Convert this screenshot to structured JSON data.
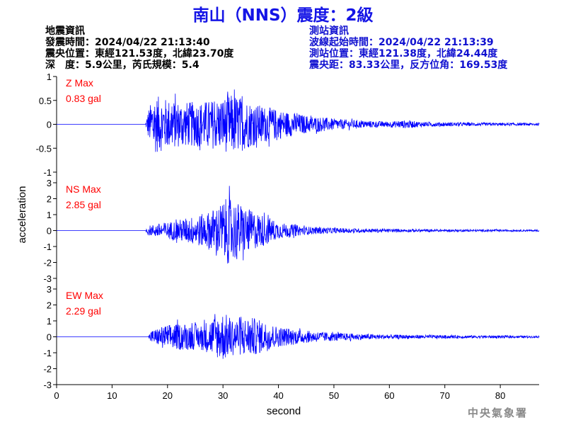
{
  "header": {
    "title": "南山（NNS）震度：2級",
    "quake_info": {
      "heading": "地震資訊",
      "origin_time": "發震時間：2024/04/22 21:13:40",
      "epicenter": "震央位置：東經121.53度，北緯23.70度",
      "depth_magnitude": "深　度：5.9公里，芮氏規模：5.4"
    },
    "station_info": {
      "heading": "測站資訊",
      "wave_start": "波線起始時間：2024/04/22 21:13:39",
      "station_location": "測站位置：東經121.38度，北緯24.44度",
      "distance_azimuth": "震央距：83.33公里，反方位角：169.53度"
    }
  },
  "footer": {
    "organization": "中央氣象署"
  },
  "colors": {
    "trace": "#0000ff",
    "max_label": "#ff0000",
    "title": "#1414e6",
    "station_info": "#1010d0"
  },
  "chart_data": {
    "type": "line",
    "xlabel": "second",
    "ylabel": "acceleration",
    "xlim": [
      0,
      87
    ],
    "x_ticks": [
      0,
      10,
      20,
      30,
      40,
      50,
      60,
      70,
      80
    ],
    "grid": false,
    "panels": [
      {
        "name": "Z",
        "max_label": "Z Max",
        "max_value": "0.83 gal",
        "ylim": [
          -1,
          1
        ],
        "y_ticks": [
          1,
          0.5,
          0,
          -0.5,
          -1
        ],
        "y_tick_labels": [
          "1",
          "0.5",
          "0",
          "-0.5",
          "-1"
        ],
        "envelope": [
          [
            0,
            0
          ],
          [
            16,
            0
          ],
          [
            16.5,
            0.35
          ],
          [
            17.5,
            0.72
          ],
          [
            20,
            0.62
          ],
          [
            23,
            0.55
          ],
          [
            26,
            0.56
          ],
          [
            29,
            0.62
          ],
          [
            32,
            0.75
          ],
          [
            34,
            0.62
          ],
          [
            36,
            0.5
          ],
          [
            40,
            0.36
          ],
          [
            45,
            0.22
          ],
          [
            50,
            0.14
          ],
          [
            55,
            0.09
          ],
          [
            60,
            0.07
          ],
          [
            63,
            0.1
          ],
          [
            66,
            0.06
          ],
          [
            75,
            0.04
          ],
          [
            87,
            0.03
          ]
        ]
      },
      {
        "name": "NS",
        "max_label": "NS Max",
        "max_value": "2.85 gal",
        "ylim": [
          -3,
          3
        ],
        "y_ticks": [
          3,
          2,
          1,
          0,
          -1,
          -2,
          -3
        ],
        "y_tick_labels": [
          "3",
          "2",
          "1",
          "0",
          "-1",
          "-2",
          "-3"
        ],
        "envelope": [
          [
            0,
            0
          ],
          [
            16,
            0
          ],
          [
            16.5,
            0.35
          ],
          [
            18,
            0.5
          ],
          [
            21,
            0.7
          ],
          [
            24,
            1.0
          ],
          [
            27,
            1.3
          ],
          [
            29,
            1.8
          ],
          [
            31,
            2.5
          ],
          [
            33,
            2.0
          ],
          [
            35,
            1.5
          ],
          [
            38,
            1.05
          ],
          [
            40,
            0.6
          ],
          [
            45,
            0.3
          ],
          [
            50,
            0.2
          ],
          [
            55,
            0.15
          ],
          [
            60,
            0.12
          ],
          [
            70,
            0.09
          ],
          [
            87,
            0.06
          ]
        ]
      },
      {
        "name": "EW",
        "max_label": "EW Max",
        "max_value": "2.29 gal",
        "ylim": [
          -3,
          3
        ],
        "y_ticks": [
          3,
          2,
          1,
          0,
          -1,
          -2,
          -3
        ],
        "y_tick_labels": [
          "3",
          "2",
          "1",
          "0",
          "-1",
          "-2",
          "-3"
        ],
        "envelope": [
          [
            0,
            0
          ],
          [
            16.5,
            0
          ],
          [
            17,
            0.45
          ],
          [
            20,
            0.9
          ],
          [
            23,
            1.0
          ],
          [
            26,
            0.9
          ],
          [
            28,
            1.4
          ],
          [
            30,
            1.8
          ],
          [
            32,
            1.35
          ],
          [
            35,
            1.45
          ],
          [
            37,
            1.2
          ],
          [
            40,
            0.75
          ],
          [
            45,
            0.45
          ],
          [
            50,
            0.3
          ],
          [
            55,
            0.22
          ],
          [
            60,
            0.16
          ],
          [
            70,
            0.12
          ],
          [
            87,
            0.08
          ]
        ]
      }
    ]
  }
}
